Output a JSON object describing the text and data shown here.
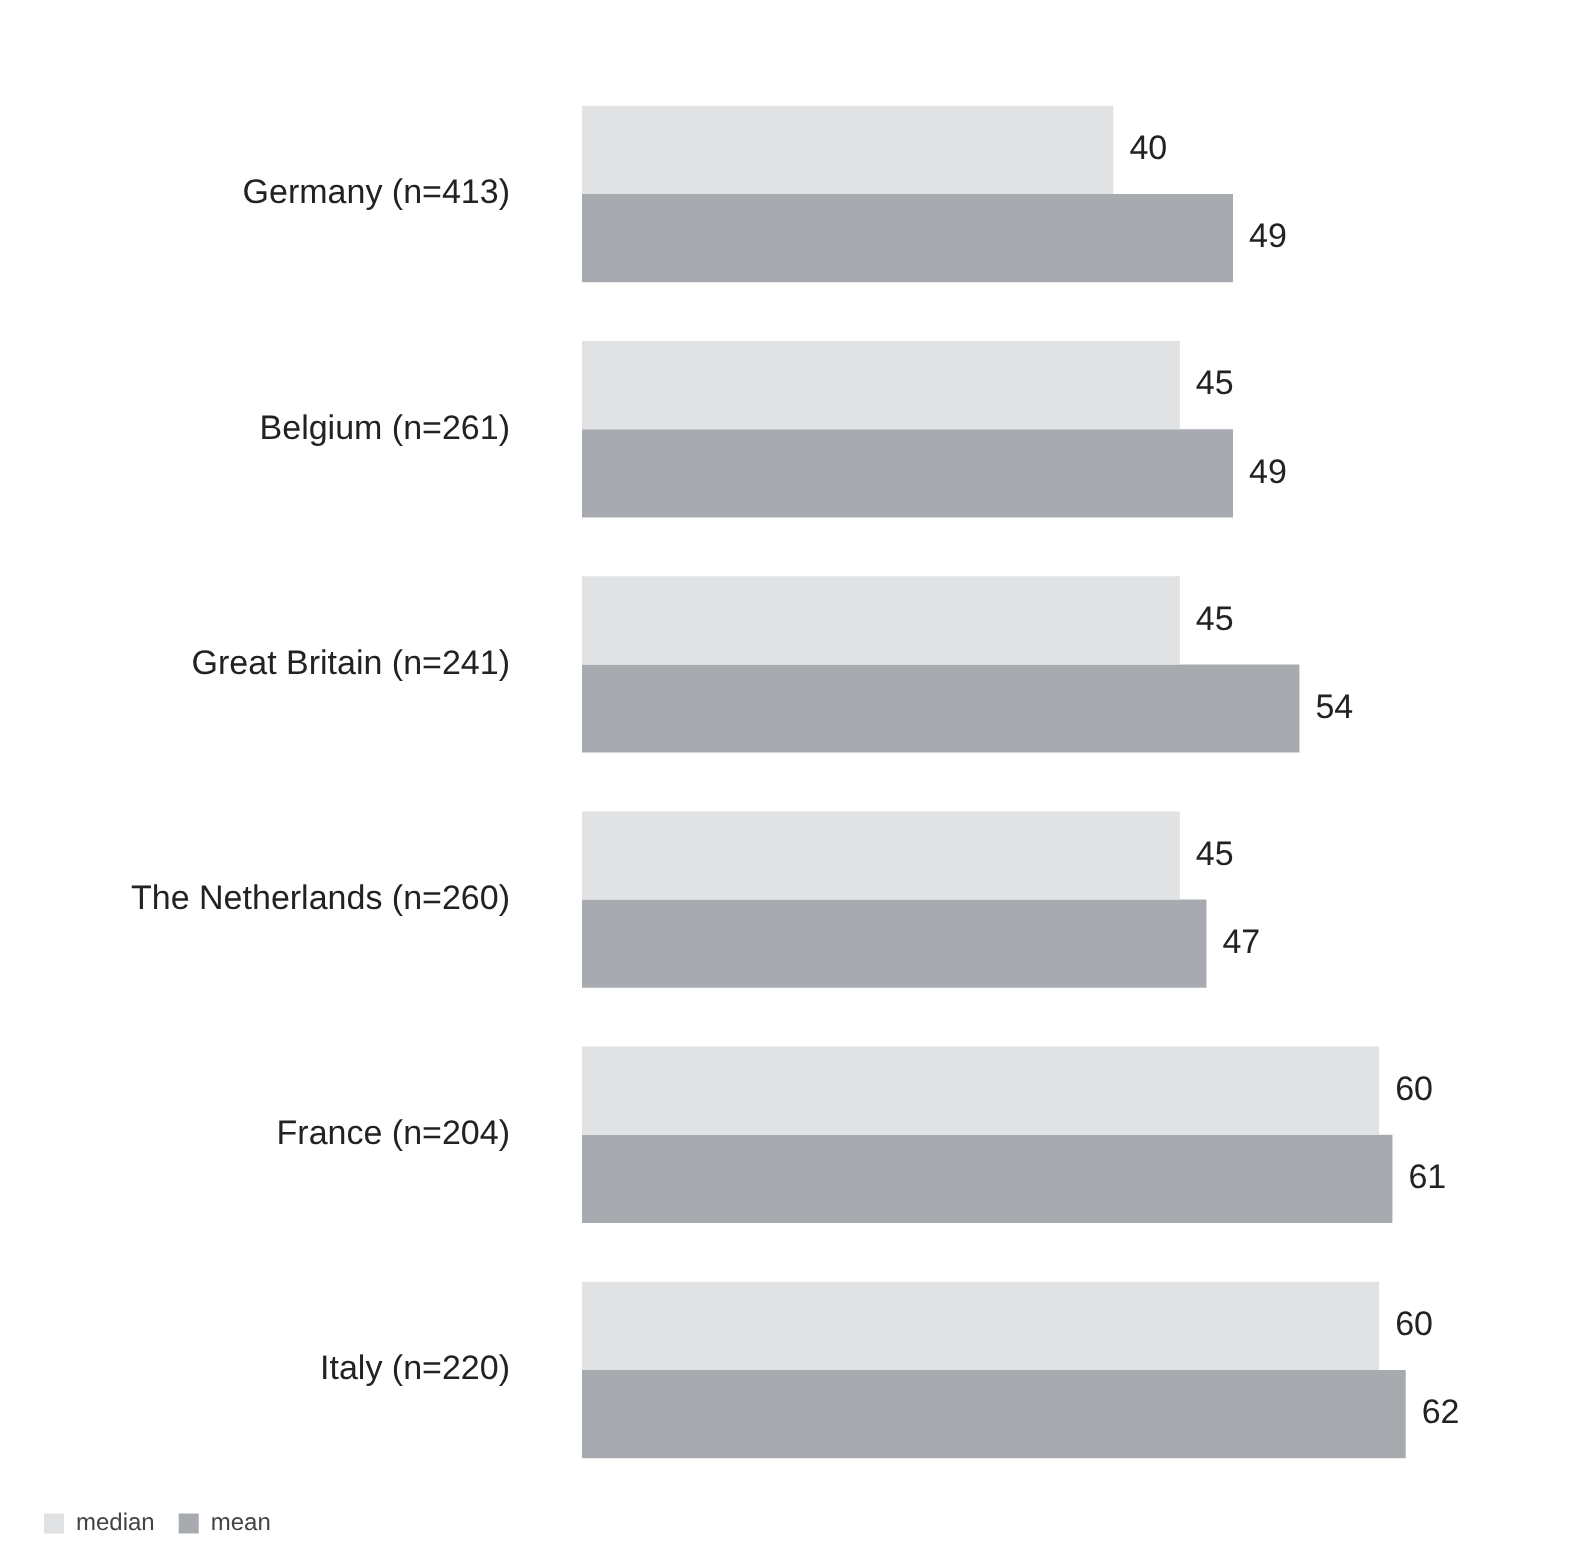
{
  "chart_data": {
    "type": "bar",
    "orientation": "horizontal",
    "categories": [
      "Germany (n=413)",
      "Belgium (n=261)",
      "Great Britain (n=241)",
      "The Netherlands (n=260)",
      "France (n=204)",
      "Italy (n=220)"
    ],
    "series": [
      {
        "name": "median",
        "color": "#e0e2e4",
        "values": [
          40,
          45,
          45,
          45,
          60,
          60
        ]
      },
      {
        "name": "mean",
        "color": "#a7abb0",
        "values": [
          49,
          49,
          54,
          47,
          61,
          62
        ]
      }
    ],
    "data_labels": true,
    "legend": "bottom left",
    "tick_labels": "y"
  }
}
